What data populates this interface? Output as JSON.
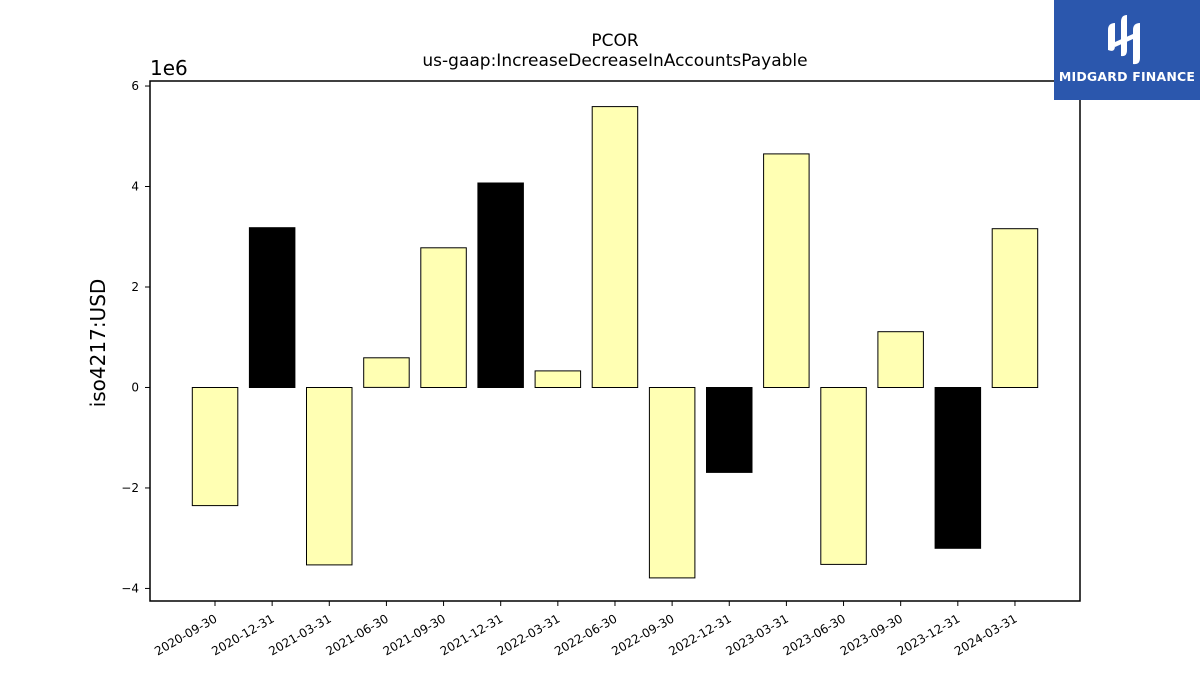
{
  "chart_data": {
    "type": "bar",
    "title": "PCOR",
    "subtitle": "us-gaap:IncreaseDecreaseInAccountsPayable",
    "ylabel": "iso4217:USD",
    "xlabel": "",
    "y_scale_label": "1e6",
    "y_multiplier": 1000000,
    "ylim": [
      -4250000,
      6100000
    ],
    "yticks": [
      -4,
      -2,
      0,
      2,
      4,
      6
    ],
    "ytick_labels": [
      "−4",
      "−2",
      "0",
      "2",
      "4",
      "6"
    ],
    "grid": false,
    "categories": [
      "2020-09-30",
      "2020-12-31",
      "2021-03-31",
      "2021-06-30",
      "2021-09-30",
      "2021-12-31",
      "2022-03-31",
      "2022-06-30",
      "2022-09-30",
      "2022-12-31",
      "2023-03-31",
      "2023-06-30",
      "2023-09-30",
      "2023-12-31",
      "2024-03-31"
    ],
    "values": [
      -2350000,
      3180000,
      -3530000,
      590000,
      2780000,
      4070000,
      330000,
      5590000,
      -3790000,
      -1690000,
      4650000,
      -3520000,
      1110000,
      -3200000,
      3160000
    ],
    "bar_colors": [
      "#ffffb3",
      "#000000",
      "#ffffb3",
      "#ffffb3",
      "#ffffb3",
      "#000000",
      "#ffffb3",
      "#ffffb3",
      "#ffffb3",
      "#000000",
      "#ffffb3",
      "#ffffb3",
      "#ffffb3",
      "#000000",
      "#ffffb3"
    ],
    "bar_edge_color": "#000000"
  },
  "logo": {
    "text": "MIDGARD FINANCE",
    "background": "#2b57ad"
  }
}
